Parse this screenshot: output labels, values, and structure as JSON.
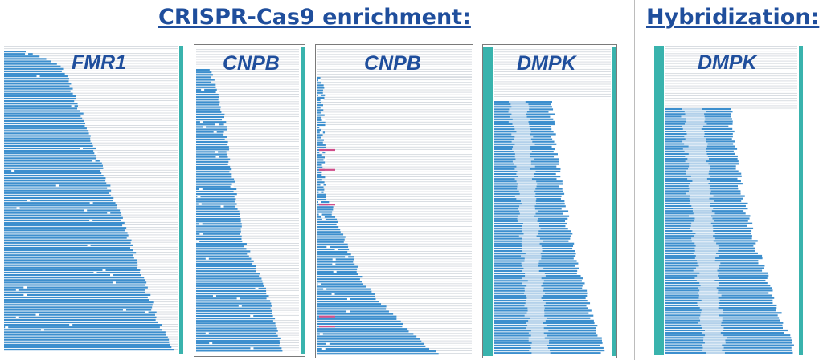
{
  "headings": {
    "crispr": "CRISPR-Cas9 enrichment:",
    "hybridization": "Hybridization:"
  },
  "colors": {
    "heading": "#1f4e9c",
    "read": "#3d8fce",
    "read_light": "#bcd6ec",
    "coverage_strip": "#39b3ad",
    "row_line": "#d9dde2",
    "mismatch": "#d04e8a"
  },
  "panels": [
    {
      "id": "fmr1",
      "gene": "FMR1",
      "style": "staircase"
    },
    {
      "id": "cnpb-1",
      "gene": "CNPB",
      "style": "staircase"
    },
    {
      "id": "cnpb-2",
      "gene": "CNPB",
      "style": "staircase"
    },
    {
      "id": "dmpk-crispr",
      "gene": "DMPK",
      "style": "repeat-block"
    },
    {
      "id": "dmpk-hybrid",
      "gene": "DMPK",
      "style": "repeat-block"
    }
  ]
}
